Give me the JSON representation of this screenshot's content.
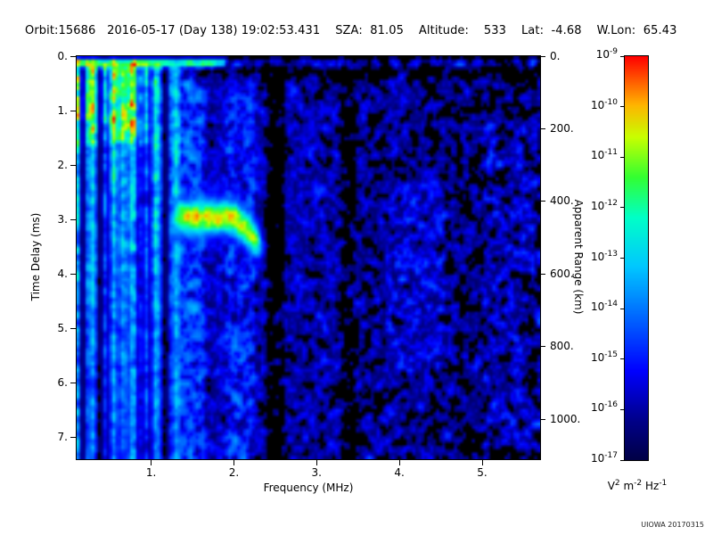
{
  "header": {
    "text": "Orbit:15686   2016-05-17 (Day 138) 19:02:53.431    SZA:  81.05    Altitude:    533    Lat:  -4.68    W.Lon:  65.43",
    "orbit": "15686",
    "date": "2016-05-17",
    "day_of_year": "138",
    "time": "19:02:53.431",
    "sza": "81.05",
    "altitude": "533",
    "lat": "-4.68",
    "w_lon": "65.43"
  },
  "credit": "UIOWA 20170315",
  "chart_data": {
    "type": "heatmap",
    "title": "",
    "xlabel": "Frequency (MHz)",
    "ylabel": "Time Delay (ms)",
    "y2label": "Apparent Range (km)",
    "x_axis": {
      "min": 0.1,
      "max": 5.7,
      "ticks": [
        {
          "v": 1,
          "label": "1."
        },
        {
          "v": 2,
          "label": "2."
        },
        {
          "v": 3,
          "label": "3."
        },
        {
          "v": 4,
          "label": "4."
        },
        {
          "v": 5,
          "label": "5."
        }
      ]
    },
    "y_axis": {
      "min": 0,
      "max": 7.4,
      "ticks": [
        {
          "v": 0,
          "label": "0."
        },
        {
          "v": 1,
          "label": "1."
        },
        {
          "v": 2,
          "label": "2."
        },
        {
          "v": 3,
          "label": "3."
        },
        {
          "v": 4,
          "label": "4."
        },
        {
          "v": 5,
          "label": "5."
        },
        {
          "v": 6,
          "label": "6."
        },
        {
          "v": 7,
          "label": "7."
        }
      ]
    },
    "y2_axis": {
      "km_per_ms": 150,
      "ticks": [
        {
          "km": 0,
          "label": "0."
        },
        {
          "km": 200,
          "label": "200."
        },
        {
          "km": 400,
          "label": "400."
        },
        {
          "km": 600,
          "label": "600."
        },
        {
          "km": 800,
          "label": "800."
        },
        {
          "km": 1000,
          "label": "1000."
        }
      ]
    },
    "colorbar": {
      "base": "10",
      "tick_exponents": [
        -9,
        -10,
        -11,
        -12,
        -13,
        -14,
        -15,
        -16,
        -17
      ],
      "min": "1e-17",
      "max": "1e-9",
      "units_parts": [
        {
          "base": "V",
          "exp": "2"
        },
        {
          "base": "m",
          "exp": "-2"
        },
        {
          "base": "Hz",
          "exp": "-1"
        }
      ]
    },
    "colormap": [
      {
        "t": 0.0,
        "c": "#000046"
      },
      {
        "t": 0.1,
        "c": "#00008c"
      },
      {
        "t": 0.22,
        "c": "#0000ff"
      },
      {
        "t": 0.35,
        "c": "#0064ff"
      },
      {
        "t": 0.48,
        "c": "#00c8ff"
      },
      {
        "t": 0.6,
        "c": "#00ffc8"
      },
      {
        "t": 0.7,
        "c": "#32ff32"
      },
      {
        "t": 0.8,
        "c": "#c8ff00"
      },
      {
        "t": 0.88,
        "c": "#ffb400"
      },
      {
        "t": 0.94,
        "c": "#ff5a00"
      },
      {
        "t": 1.0,
        "c": "#ff0000"
      }
    ],
    "features": {
      "seed": 15686,
      "grid": {
        "nx": 156,
        "ny": 120
      },
      "noise_floor": 0.055,
      "gain": 1.2,
      "plasma_stripes": {
        "f_max": 1.35,
        "col_on_prob": 0.75,
        "amp_min": 0.18,
        "amp_rand": 0.45,
        "fade": 0.3,
        "top_boost": 0.2,
        "top_boost_d_max": 1.6,
        "top_boost_f_max": 1.0
      },
      "surface_band": {
        "top_gap_ms": 0.06,
        "d_max_ms": 0.2,
        "bright_f_max": 1.9,
        "bright_amp": 0.6,
        "faint_prob": 0.45,
        "faint_amp": 0.3
      },
      "ionosphere_trace": {
        "f_min": 1.22,
        "f_max": 2.38,
        "delay_ms": 2.95,
        "slope_f0": 2.0,
        "slope_ms_per_mhz": 1.6,
        "sigma_ms": 0.24,
        "amp": 0.7,
        "edge_mhz": 0.12
      },
      "diffuse": {
        "f_min": 1.2,
        "p0": 0.6,
        "p_slope": 0.07,
        "amp_min": 0.1,
        "amp_rand": 0.22,
        "top_quiet_d_ms": 0.45,
        "top_quiet_factor": 0.45,
        "gaps": [
          {
            "f0": 2.38,
            "f1": 2.62,
            "factor": 0.12
          },
          {
            "f0": 3.3,
            "f1": 3.46,
            "factor": 0.3
          }
        ],
        "dense": [
          {
            "f0": 1.28,
            "f1": 1.64,
            "d0": 0.0,
            "d1": 7.4,
            "p_boost": 0.2,
            "amp_boost": 0.1
          },
          {
            "f0": 1.9,
            "f1": 2.25,
            "d0": 0.4,
            "d1": 7.4,
            "p_boost": 0.15,
            "amp_boost": 0.08
          },
          {
            "f0": 2.7,
            "f1": 3.3,
            "d0": 0.8,
            "d1": 4.5,
            "p_boost": 0.08,
            "amp_boost": 0.0
          },
          {
            "f0": 3.85,
            "f1": 4.55,
            "d0": 2.3,
            "d1": 5.8,
            "p_boost": 0.15,
            "amp_boost": 0.05
          },
          {
            "f0": 5.0,
            "f1": 5.7,
            "d0": 1.2,
            "d1": 7.2,
            "p_boost": 0.1,
            "amp_boost": 0.05
          }
        ]
      }
    }
  }
}
